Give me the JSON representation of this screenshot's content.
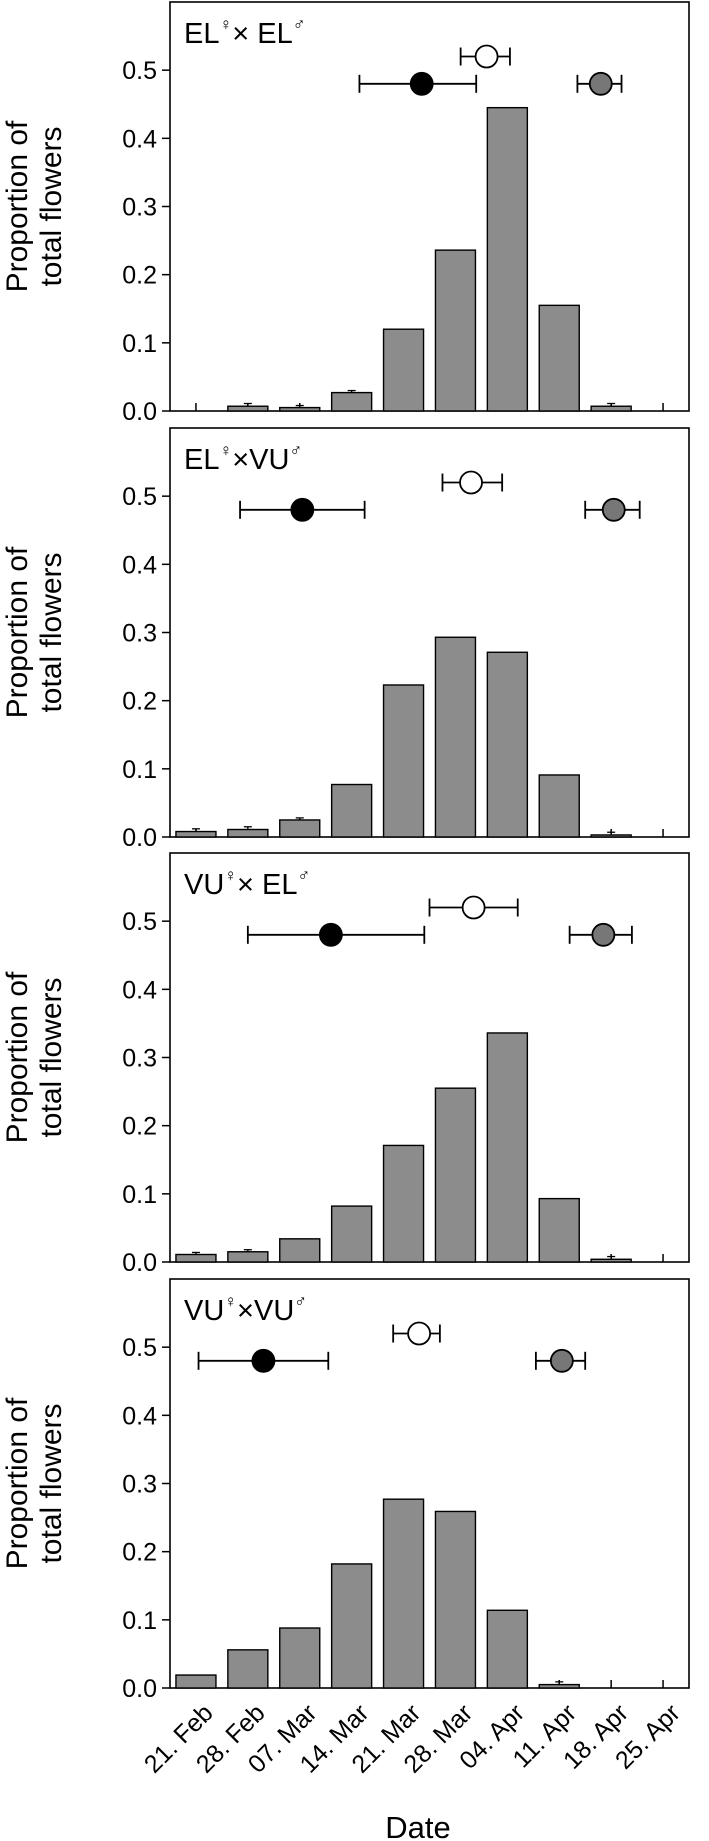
{
  "figure": {
    "ylabel_line1": "Proportion of",
    "ylabel_line2": "total flowers",
    "xlabel": "Date"
  },
  "chart_data": [
    {
      "type": "bar",
      "panel_label": {
        "a": "EL",
        "b": "♀",
        "c": "× EL",
        "d": "♂"
      },
      "categories": [
        "21. Feb",
        "28. Feb",
        "07. Mar",
        "14. Mar",
        "21. Mar",
        "28. Mar",
        "04. Apr",
        "11. Apr",
        "18. Apr",
        "25. Apr"
      ],
      "values": [
        0.0,
        0.007,
        0.005,
        0.027,
        0.12,
        0.236,
        0.445,
        0.155,
        0.007,
        0.0
      ],
      "errors": [
        0.0,
        0.004,
        0.003,
        0.003,
        0.0,
        0.0,
        0.0,
        0.0,
        0.004,
        0.0
      ],
      "ylim": [
        0,
        0.6
      ],
      "yticks": [
        "0.0",
        "0.1",
        "0.2",
        "0.3",
        "0.4",
        "0.5"
      ],
      "markers": [
        {
          "fill": "#ffffff",
          "x": 5.6,
          "lo": 5.1,
          "hi": 6.05,
          "y": 0.52
        },
        {
          "fill": "#000000",
          "x": 4.35,
          "lo": 3.15,
          "hi": 5.4,
          "y": 0.48
        },
        {
          "fill": "#777777",
          "x": 7.8,
          "lo": 7.35,
          "hi": 8.2,
          "y": 0.48
        }
      ]
    },
    {
      "type": "bar",
      "panel_label": {
        "a": "EL",
        "b": "♀",
        "c": "×VU",
        "d": "♂"
      },
      "categories": [
        "21. Feb",
        "28. Feb",
        "07. Mar",
        "14. Mar",
        "21. Mar",
        "28. Mar",
        "04. Apr",
        "11. Apr",
        "18. Apr",
        "25. Apr"
      ],
      "values": [
        0.008,
        0.011,
        0.025,
        0.077,
        0.223,
        0.293,
        0.271,
        0.091,
        0.003,
        0.0
      ],
      "errors": [
        0.004,
        0.004,
        0.003,
        0.0,
        0.0,
        0.0,
        0.0,
        0.0,
        0.004,
        0.0
      ],
      "ylim": [
        0,
        0.6
      ],
      "yticks": [
        "0.0",
        "0.1",
        "0.2",
        "0.3",
        "0.4",
        "0.5"
      ],
      "markers": [
        {
          "fill": "#ffffff",
          "x": 5.3,
          "lo": 4.75,
          "hi": 5.9,
          "y": 0.52
        },
        {
          "fill": "#000000",
          "x": 2.05,
          "lo": 0.85,
          "hi": 3.25,
          "y": 0.48
        },
        {
          "fill": "#777777",
          "x": 8.05,
          "lo": 7.5,
          "hi": 8.55,
          "y": 0.48
        }
      ]
    },
    {
      "type": "bar",
      "panel_label": {
        "a": "VU",
        "b": "♀",
        "c": "× EL",
        "d": "♂"
      },
      "categories": [
        "21. Feb",
        "28. Feb",
        "07. Mar",
        "14. Mar",
        "21. Mar",
        "28. Mar",
        "04. Apr",
        "11. Apr",
        "18. Apr",
        "25. Apr"
      ],
      "values": [
        0.011,
        0.015,
        0.034,
        0.082,
        0.171,
        0.255,
        0.336,
        0.093,
        0.004,
        0.0
      ],
      "errors": [
        0.003,
        0.003,
        0.0,
        0.0,
        0.0,
        0.0,
        0.0,
        0.0,
        0.004,
        0.0
      ],
      "ylim": [
        0,
        0.6
      ],
      "yticks": [
        "0.0",
        "0.1",
        "0.2",
        "0.3",
        "0.4",
        "0.5"
      ],
      "markers": [
        {
          "fill": "#ffffff",
          "x": 5.35,
          "lo": 4.5,
          "hi": 6.2,
          "y": 0.52
        },
        {
          "fill": "#000000",
          "x": 2.6,
          "lo": 1.0,
          "hi": 4.4,
          "y": 0.48
        },
        {
          "fill": "#777777",
          "x": 7.85,
          "lo": 7.2,
          "hi": 8.4,
          "y": 0.48
        }
      ]
    },
    {
      "type": "bar",
      "panel_label": {
        "a": "VU",
        "b": "♀",
        "c": "×VU",
        "d": "♂"
      },
      "categories": [
        "21. Feb",
        "28. Feb",
        "07. Mar",
        "14. Mar",
        "21. Mar",
        "28. Mar",
        "04. Apr",
        "11. Apr",
        "18. Apr",
        "25. Apr"
      ],
      "values": [
        0.019,
        0.056,
        0.088,
        0.182,
        0.277,
        0.259,
        0.114,
        0.005,
        0.0,
        0.0
      ],
      "errors": [
        0.0,
        0.0,
        0.0,
        0.0,
        0.0,
        0.0,
        0.0,
        0.004,
        0.0,
        0.0
      ],
      "ylim": [
        0,
        0.6
      ],
      "yticks": [
        "0.0",
        "0.1",
        "0.2",
        "0.3",
        "0.4",
        "0.5"
      ],
      "markers": [
        {
          "fill": "#ffffff",
          "x": 4.3,
          "lo": 3.8,
          "hi": 4.7,
          "y": 0.52
        },
        {
          "fill": "#000000",
          "x": 1.3,
          "lo": 0.05,
          "hi": 2.55,
          "y": 0.48
        },
        {
          "fill": "#777777",
          "x": 7.05,
          "lo": 6.55,
          "hi": 7.5,
          "y": 0.48
        }
      ]
    }
  ]
}
